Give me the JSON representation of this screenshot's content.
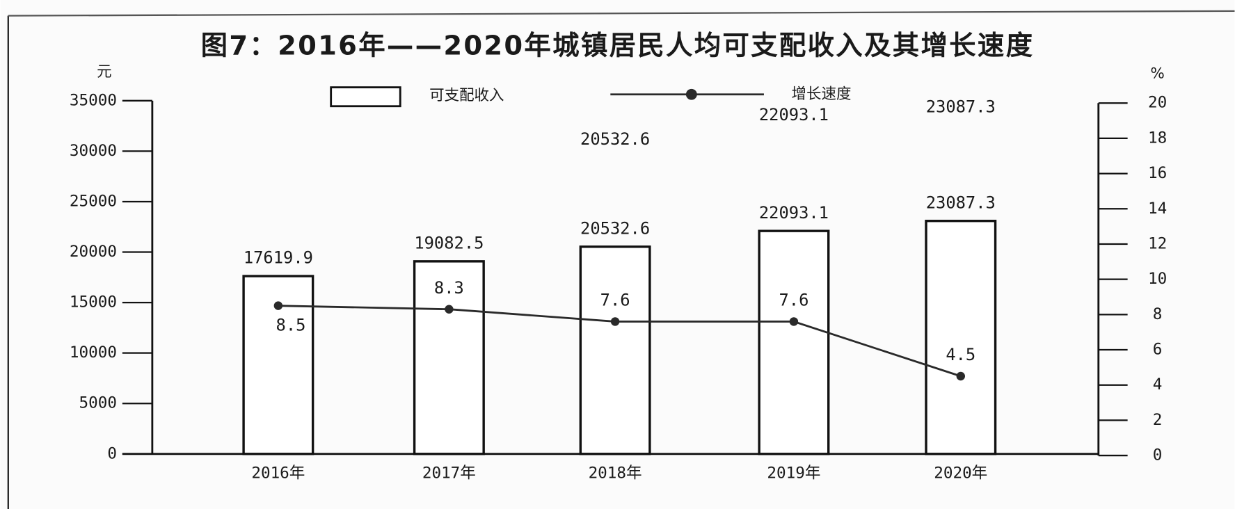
{
  "chart_data": {
    "type": "bar",
    "title": "图7：2016年——2020年城镇居民人均可支配收入及其增长速度",
    "y_label": "元",
    "y2_label": "%",
    "categories": [
      "2016年",
      "2017年",
      "2018年",
      "2019年",
      "2020年"
    ],
    "series": [
      {
        "name": "可支配收入",
        "type": "bar",
        "color": "#ffffff",
        "values": [
          17619.9,
          19082.5,
          20532.6,
          22093.1,
          23087.3
        ]
      },
      {
        "name": "增长速度",
        "type": "line",
        "axis": "y2",
        "color": "#2a2a2a",
        "values": [
          8.5,
          8.3,
          7.6,
          7.6,
          4.5
        ]
      }
    ],
    "annotations": [
      "20532.6",
      "22093.1",
      "23087.3"
    ],
    "ylim": [
      0,
      35000
    ],
    "yticks": [
      0,
      5000,
      10000,
      15000,
      20000,
      25000,
      30000,
      35000
    ],
    "y2lim": [
      0,
      20
    ],
    "y2ticks": [
      0,
      2,
      4,
      6,
      8,
      10,
      12,
      14,
      16,
      18,
      20
    ]
  }
}
